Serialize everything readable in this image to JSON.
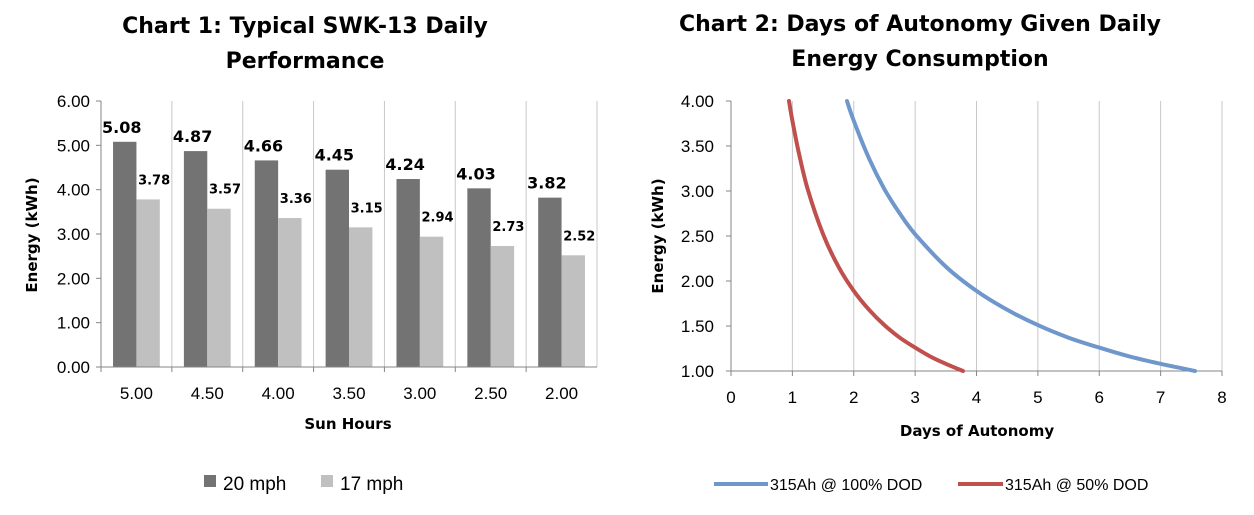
{
  "chart_data": [
    {
      "type": "bar",
      "title_lines": [
        "Chart 1: Typical SWK-13 Daily",
        "Performance"
      ],
      "xlabel": "Sun Hours",
      "ylabel": "Energy (kWh)",
      "ylim": [
        0,
        6
      ],
      "yticks": [
        "0.00",
        "1.00",
        "2.00",
        "3.00",
        "4.00",
        "5.00",
        "6.00"
      ],
      "categories": [
        "5.00",
        "4.50",
        "4.00",
        "3.50",
        "3.00",
        "2.50",
        "2.00"
      ],
      "grid": "vertical category separators",
      "legend_position": "bottom",
      "series": [
        {
          "name": "20 mph",
          "color": "#737373",
          "values": [
            5.08,
            4.87,
            4.66,
            4.45,
            4.24,
            4.03,
            3.82
          ],
          "labels": [
            "5.08",
            "4.87",
            "4.66",
            "4.45",
            "4.24",
            "4.03",
            "3.82"
          ]
        },
        {
          "name": "17 mph",
          "color": "#c0c0c0",
          "values": [
            3.78,
            3.57,
            3.36,
            3.15,
            2.94,
            2.73,
            2.52
          ],
          "labels": [
            "3.78",
            "3.57",
            "3.36",
            "3.15",
            "2.94",
            "2.73",
            "2.52"
          ]
        }
      ]
    },
    {
      "type": "line",
      "title_lines": [
        "Chart 2: Days of Autonomy Given Daily",
        "Energy Consumption"
      ],
      "xlabel": "Days of Autonomy",
      "ylabel": "Energy (kWh)",
      "xlim": [
        0,
        8
      ],
      "ylim": [
        1,
        4
      ],
      "xticks": [
        "0",
        "1",
        "2",
        "3",
        "4",
        "5",
        "6",
        "7",
        "8"
      ],
      "yticks": [
        "1.00",
        "1.50",
        "2.00",
        "2.50",
        "3.00",
        "3.50",
        "4.00"
      ],
      "grid": "vertical gridlines",
      "legend_position": "bottom",
      "series": [
        {
          "name": "315Ah @ 100% DOD",
          "color": "#6f97cc",
          "x": [
            1.89,
            2.0,
            2.25,
            2.5,
            2.75,
            3.0,
            3.5,
            4.0,
            4.5,
            5.0,
            5.5,
            6.0,
            6.5,
            7.0,
            7.56
          ],
          "y": [
            4.0,
            3.78,
            3.36,
            3.02,
            2.75,
            2.52,
            2.16,
            1.89,
            1.68,
            1.51,
            1.37,
            1.26,
            1.16,
            1.08,
            1.0
          ]
        },
        {
          "name": "315Ah @ 50% DOD",
          "color": "#c0504d",
          "x": [
            0.945,
            1.0,
            1.1,
            1.25,
            1.5,
            1.75,
            2.0,
            2.25,
            2.5,
            2.75,
            3.0,
            3.25,
            3.5,
            3.78
          ],
          "y": [
            4.0,
            3.78,
            3.44,
            3.02,
            2.52,
            2.16,
            1.89,
            1.68,
            1.51,
            1.37,
            1.26,
            1.16,
            1.08,
            1.0
          ]
        }
      ]
    }
  ]
}
